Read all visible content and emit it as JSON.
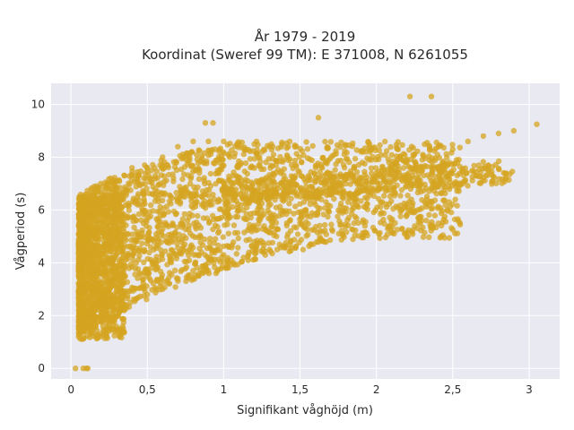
{
  "chart_data": {
    "type": "scatter",
    "title_line1": "År 1979 - 2019",
    "title_line2": "Koordinat (Sweref 99 TM): E 371008, N 6261055",
    "xlabel": "Signifikant våghöjd (m)",
    "ylabel": "Vågperiod (s)",
    "xlim": [
      -0.13,
      3.2
    ],
    "ylim": [
      -0.4,
      10.8
    ],
    "x_ticks": [
      0,
      0.5,
      1,
      1.5,
      2,
      2.5,
      3
    ],
    "x_tick_labels": [
      "0",
      "0,5",
      "1",
      "1,5",
      "2",
      "2,5",
      "3"
    ],
    "y_ticks": [
      0,
      2,
      4,
      6,
      8,
      10
    ],
    "y_tick_labels": [
      "0",
      "2",
      "4",
      "6",
      "8",
      "10"
    ],
    "grid": true,
    "colors": {
      "marker": "#d4a420",
      "plot_background": "#e9e9f2",
      "grid": "#ffffff"
    },
    "series": [
      {
        "values": [
          [
            0.03,
            0.0
          ],
          [
            0.08,
            0.0
          ],
          [
            0.1,
            0.0
          ],
          [
            0.11,
            0.0
          ],
          [
            0.05,
            1.2
          ],
          [
            0.08,
            1.4
          ],
          [
            0.12,
            1.8
          ],
          [
            0.15,
            2.1
          ],
          [
            0.2,
            2.5
          ],
          [
            0.1,
            3.0
          ],
          [
            0.12,
            3.8
          ],
          [
            0.15,
            4.6
          ],
          [
            0.18,
            5.2
          ],
          [
            0.2,
            5.9
          ],
          [
            0.22,
            6.4
          ],
          [
            0.25,
            6.8
          ],
          [
            0.3,
            7.1
          ],
          [
            0.35,
            7.3
          ],
          [
            0.4,
            7.6
          ],
          [
            0.5,
            7.6
          ],
          [
            0.6,
            8.0
          ],
          [
            0.7,
            8.4
          ],
          [
            0.8,
            8.6
          ],
          [
            0.9,
            8.6
          ],
          [
            1.0,
            8.6
          ],
          [
            1.1,
            8.5
          ],
          [
            1.2,
            8.5
          ],
          [
            1.3,
            8.4
          ],
          [
            0.35,
            2.2
          ],
          [
            0.5,
            2.8
          ],
          [
            0.6,
            3.0
          ],
          [
            0.7,
            3.4
          ],
          [
            0.8,
            3.7
          ],
          [
            0.9,
            4.0
          ],
          [
            1.0,
            4.3
          ],
          [
            1.2,
            4.8
          ],
          [
            1.4,
            4.6
          ],
          [
            1.5,
            5.5
          ],
          [
            1.6,
            6.2
          ],
          [
            1.7,
            6.6
          ],
          [
            1.8,
            7.0
          ],
          [
            1.9,
            7.2
          ],
          [
            2.0,
            7.4
          ],
          [
            2.1,
            7.6
          ],
          [
            2.2,
            7.8
          ],
          [
            2.3,
            7.9
          ],
          [
            2.4,
            8.1
          ],
          [
            2.5,
            8.3
          ],
          [
            2.6,
            8.6
          ],
          [
            2.7,
            8.8
          ],
          [
            2.8,
            8.9
          ],
          [
            2.9,
            9.0
          ],
          [
            3.05,
            9.25
          ],
          [
            2.22,
            10.3
          ],
          [
            2.36,
            10.3
          ],
          [
            0.88,
            9.3
          ],
          [
            0.93,
            9.3
          ],
          [
            1.62,
            9.5
          ],
          [
            1.35,
            4.5
          ],
          [
            1.52,
            4.5
          ],
          [
            1.3,
            4.5
          ],
          [
            0.95,
            3.6
          ],
          [
            1.05,
            4.1
          ]
        ]
      }
    ]
  }
}
